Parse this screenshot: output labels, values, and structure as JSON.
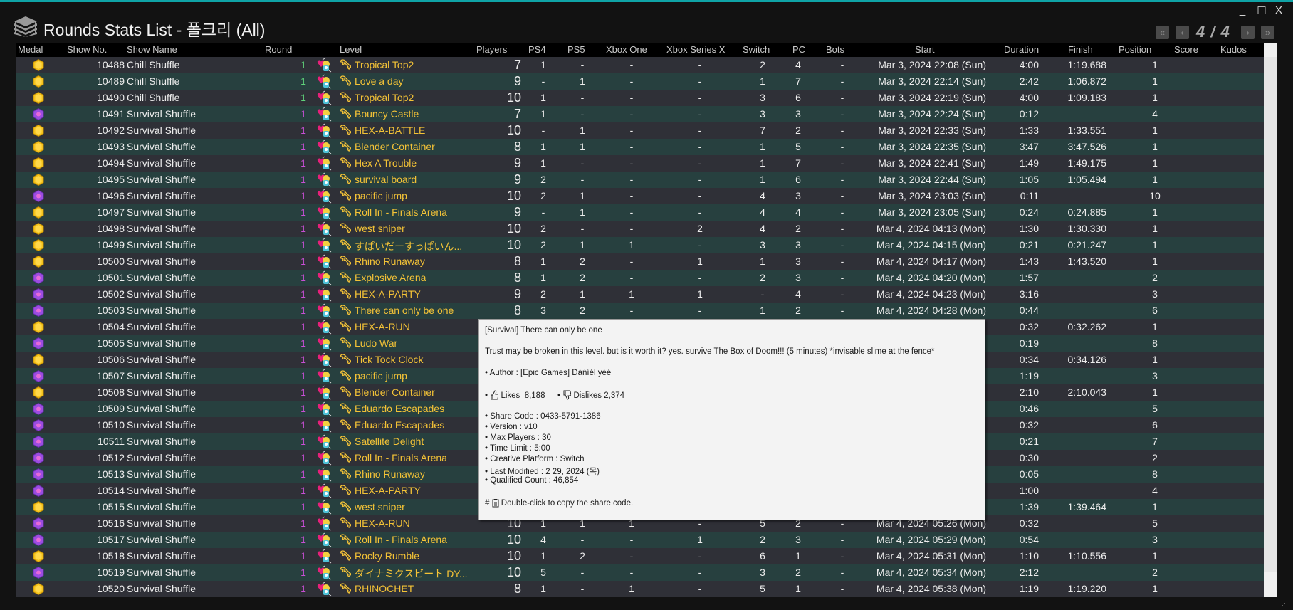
{
  "window": {
    "title": "Rounds Stats List - 폴크리 (All)",
    "controls": {
      "minimize": "_",
      "maximize": "☐",
      "close": "X"
    },
    "accent_color": "#0fa3a6"
  },
  "pager": {
    "first": "«",
    "prev": "‹",
    "page_info": "4 / 4",
    "next": "›",
    "last": "»"
  },
  "columns": {
    "medal": "Medal",
    "show_no": "Show No.",
    "show_name": "Show Name",
    "round": "Round",
    "level": "Level",
    "players": "Players",
    "ps4": "PS4",
    "ps5": "PS5",
    "xbox_one": "Xbox One",
    "xbox_series_x": "Xbox Series X",
    "switch": "Switch",
    "pc": "PC",
    "bots": "Bots",
    "start": "Start",
    "duration": "Duration",
    "finish": "Finish",
    "position": "Position",
    "score": "Score",
    "kudos": "Kudos"
  },
  "colors": {
    "medal_gold": "#f4c21c",
    "medal_purple": "#9b4de0",
    "round_chill": "#5fd27a",
    "round_survival": "#c94fd6",
    "level_text": "#f3c237",
    "row_dark": "#2f3037",
    "row_teal": "#27403f"
  },
  "rows": [
    {
      "medal": "gold",
      "show_no": "10488",
      "show_name": "Chill Shuffle",
      "round": "1",
      "level": "Tropical Top2",
      "players": "7",
      "ps4": "1",
      "ps5": "-",
      "xbox_one": "-",
      "xbox_series_x": "-",
      "switch": "2",
      "pc": "4",
      "bots": "-",
      "start": "Mar 3, 2024 22:08 (Sun)",
      "duration": "4:00",
      "finish": "1:19.688",
      "position": "1"
    },
    {
      "medal": "gold",
      "show_no": "10489",
      "show_name": "Chill Shuffle",
      "round": "1",
      "level": "Love a day",
      "players": "9",
      "ps4": "-",
      "ps5": "1",
      "xbox_one": "-",
      "xbox_series_x": "-",
      "switch": "1",
      "pc": "7",
      "bots": "-",
      "start": "Mar 3, 2024 22:14 (Sun)",
      "duration": "2:42",
      "finish": "1:06.872",
      "position": "1"
    },
    {
      "medal": "gold",
      "show_no": "10490",
      "show_name": "Chill Shuffle",
      "round": "1",
      "level": "Tropical Top2",
      "players": "10",
      "ps4": "1",
      "ps5": "-",
      "xbox_one": "-",
      "xbox_series_x": "-",
      "switch": "3",
      "pc": "6",
      "bots": "-",
      "start": "Mar 3, 2024 22:19 (Sun)",
      "duration": "4:00",
      "finish": "1:09.183",
      "position": "1"
    },
    {
      "medal": "purple",
      "show_no": "10491",
      "show_name": "Survival Shuffle",
      "round": "1",
      "level": "Bouncy Castle",
      "players": "7",
      "ps4": "1",
      "ps5": "-",
      "xbox_one": "-",
      "xbox_series_x": "-",
      "switch": "3",
      "pc": "3",
      "bots": "-",
      "start": "Mar 3, 2024 22:24 (Sun)",
      "duration": "0:12",
      "finish": "",
      "position": "4"
    },
    {
      "medal": "gold",
      "show_no": "10492",
      "show_name": "Survival Shuffle",
      "round": "1",
      "level": "HEX-A-BATTLE",
      "players": "10",
      "ps4": "-",
      "ps5": "1",
      "xbox_one": "-",
      "xbox_series_x": "-",
      "switch": "7",
      "pc": "2",
      "bots": "-",
      "start": "Mar 3, 2024 22:33 (Sun)",
      "duration": "1:33",
      "finish": "1:33.551",
      "position": "1"
    },
    {
      "medal": "gold",
      "show_no": "10493",
      "show_name": "Survival Shuffle",
      "round": "1",
      "level": "Blender Container",
      "players": "8",
      "ps4": "1",
      "ps5": "1",
      "xbox_one": "-",
      "xbox_series_x": "-",
      "switch": "1",
      "pc": "5",
      "bots": "-",
      "start": "Mar 3, 2024 22:35 (Sun)",
      "duration": "3:47",
      "finish": "3:47.526",
      "position": "1"
    },
    {
      "medal": "gold",
      "show_no": "10494",
      "show_name": "Survival Shuffle",
      "round": "1",
      "level": "Hex A Trouble",
      "players": "9",
      "ps4": "1",
      "ps5": "-",
      "xbox_one": "-",
      "xbox_series_x": "-",
      "switch": "1",
      "pc": "7",
      "bots": "-",
      "start": "Mar 3, 2024 22:41 (Sun)",
      "duration": "1:49",
      "finish": "1:49.175",
      "position": "1"
    },
    {
      "medal": "gold",
      "show_no": "10495",
      "show_name": "Survival Shuffle",
      "round": "1",
      "level": "survival board",
      "players": "9",
      "ps4": "2",
      "ps5": "-",
      "xbox_one": "-",
      "xbox_series_x": "-",
      "switch": "1",
      "pc": "6",
      "bots": "-",
      "start": "Mar 3, 2024 22:44 (Sun)",
      "duration": "1:05",
      "finish": "1:05.494",
      "position": "1"
    },
    {
      "medal": "purple",
      "show_no": "10496",
      "show_name": "Survival Shuffle",
      "round": "1",
      "level": "pacific jump",
      "players": "10",
      "ps4": "2",
      "ps5": "1",
      "xbox_one": "-",
      "xbox_series_x": "-",
      "switch": "4",
      "pc": "3",
      "bots": "-",
      "start": "Mar 3, 2024 23:03 (Sun)",
      "duration": "0:11",
      "finish": "",
      "position": "10"
    },
    {
      "medal": "gold",
      "show_no": "10497",
      "show_name": "Survival Shuffle",
      "round": "1",
      "level": "Roll In - Finals Arena",
      "players": "9",
      "ps4": "-",
      "ps5": "1",
      "xbox_one": "-",
      "xbox_series_x": "-",
      "switch": "4",
      "pc": "4",
      "bots": "-",
      "start": "Mar 3, 2024 23:05 (Sun)",
      "duration": "0:24",
      "finish": "0:24.885",
      "position": "1"
    },
    {
      "medal": "gold",
      "show_no": "10498",
      "show_name": "Survival Shuffle",
      "round": "1",
      "level": "west sniper",
      "players": "10",
      "ps4": "2",
      "ps5": "-",
      "xbox_one": "-",
      "xbox_series_x": "2",
      "switch": "4",
      "pc": "2",
      "bots": "-",
      "start": "Mar 4, 2024 04:13 (Mon)",
      "duration": "1:30",
      "finish": "1:30.330",
      "position": "1"
    },
    {
      "medal": "gold",
      "show_no": "10499",
      "show_name": "Survival Shuffle",
      "round": "1",
      "level": "すぱいだーすっぱいん...",
      "players": "10",
      "ps4": "2",
      "ps5": "1",
      "xbox_one": "1",
      "xbox_series_x": "-",
      "switch": "3",
      "pc": "3",
      "bots": "-",
      "start": "Mar 4, 2024 04:15 (Mon)",
      "duration": "0:21",
      "finish": "0:21.247",
      "position": "1"
    },
    {
      "medal": "gold",
      "show_no": "10500",
      "show_name": "Survival Shuffle",
      "round": "1",
      "level": "Rhino Runaway",
      "players": "8",
      "ps4": "1",
      "ps5": "2",
      "xbox_one": "-",
      "xbox_series_x": "1",
      "switch": "1",
      "pc": "3",
      "bots": "-",
      "start": "Mar 4, 2024 04:17 (Mon)",
      "duration": "1:43",
      "finish": "1:43.520",
      "position": "1"
    },
    {
      "medal": "purple",
      "show_no": "10501",
      "show_name": "Survival Shuffle",
      "round": "1",
      "level": "Explosive Arena",
      "players": "8",
      "ps4": "1",
      "ps5": "2",
      "xbox_one": "-",
      "xbox_series_x": "-",
      "switch": "2",
      "pc": "3",
      "bots": "-",
      "start": "Mar 4, 2024 04:20 (Mon)",
      "duration": "1:57",
      "finish": "",
      "position": "2"
    },
    {
      "medal": "purple",
      "show_no": "10502",
      "show_name": "Survival Shuffle",
      "round": "1",
      "level": "HEX-A-PARTY",
      "players": "9",
      "ps4": "2",
      "ps5": "1",
      "xbox_one": "1",
      "xbox_series_x": "1",
      "switch": "-",
      "pc": "4",
      "bots": "-",
      "start": "Mar 4, 2024 04:23 (Mon)",
      "duration": "3:16",
      "finish": "",
      "position": "3"
    },
    {
      "medal": "purple",
      "show_no": "10503",
      "show_name": "Survival Shuffle",
      "round": "1",
      "level": "There can only be one",
      "players": "8",
      "ps4": "3",
      "ps5": "2",
      "xbox_one": "-",
      "xbox_series_x": "-",
      "switch": "1",
      "pc": "2",
      "bots": "-",
      "start": "Mar 4, 2024 04:28 (Mon)",
      "duration": "0:44",
      "finish": "",
      "position": "6"
    },
    {
      "medal": "gold",
      "show_no": "10504",
      "show_name": "Survival Shuffle",
      "round": "1",
      "level": "HEX-A-RUN",
      "duration": "0:32",
      "finish": "0:32.262",
      "position": "1"
    },
    {
      "medal": "purple",
      "show_no": "10505",
      "show_name": "Survival Shuffle",
      "round": "1",
      "level": "Ludo War",
      "duration": "0:19",
      "finish": "",
      "position": "8"
    },
    {
      "medal": "gold",
      "show_no": "10506",
      "show_name": "Survival Shuffle",
      "round": "1",
      "level": "Tick Tock Clock",
      "duration": "0:34",
      "finish": "0:34.126",
      "position": "1"
    },
    {
      "medal": "purple",
      "show_no": "10507",
      "show_name": "Survival Shuffle",
      "round": "1",
      "level": "pacific jump",
      "duration": "1:19",
      "finish": "",
      "position": "3"
    },
    {
      "medal": "gold",
      "show_no": "10508",
      "show_name": "Survival Shuffle",
      "round": "1",
      "level": "Blender Container",
      "duration": "2:10",
      "finish": "2:10.043",
      "position": "1"
    },
    {
      "medal": "purple",
      "show_no": "10509",
      "show_name": "Survival Shuffle",
      "round": "1",
      "level": "Eduardo Escapades",
      "duration": "0:46",
      "finish": "",
      "position": "5"
    },
    {
      "medal": "purple",
      "show_no": "10510",
      "show_name": "Survival Shuffle",
      "round": "1",
      "level": "Eduardo Escapades",
      "duration": "0:32",
      "finish": "",
      "position": "6"
    },
    {
      "medal": "purple",
      "show_no": "10511",
      "show_name": "Survival Shuffle",
      "round": "1",
      "level": "Satellite Delight",
      "duration": "0:21",
      "finish": "",
      "position": "7"
    },
    {
      "medal": "purple",
      "show_no": "10512",
      "show_name": "Survival Shuffle",
      "round": "1",
      "level": "Roll In - Finals Arena",
      "duration": "0:30",
      "finish": "",
      "position": "2"
    },
    {
      "medal": "purple",
      "show_no": "10513",
      "show_name": "Survival Shuffle",
      "round": "1",
      "level": "Rhino Runaway",
      "duration": "0:05",
      "finish": "",
      "position": "8"
    },
    {
      "medal": "purple",
      "show_no": "10514",
      "show_name": "Survival Shuffle",
      "round": "1",
      "level": "HEX-A-PARTY",
      "duration": "1:00",
      "finish": "",
      "position": "4"
    },
    {
      "medal": "gold",
      "show_no": "10515",
      "show_name": "Survival Shuffle",
      "round": "1",
      "level": "west sniper",
      "duration": "1:39",
      "finish": "1:39.464",
      "position": "1"
    },
    {
      "medal": "purple",
      "show_no": "10516",
      "show_name": "Survival Shuffle",
      "round": "1",
      "level": "HEX-A-RUN",
      "players": "10",
      "ps4": "1",
      "ps5": "1",
      "xbox_one": "1",
      "xbox_series_x": "-",
      "switch": "5",
      "pc": "2",
      "bots": "-",
      "start": "Mar 4, 2024 05:26 (Mon)",
      "duration": "0:32",
      "finish": "",
      "position": "5"
    },
    {
      "medal": "purple",
      "show_no": "10517",
      "show_name": "Survival Shuffle",
      "round": "1",
      "level": "Roll In - Finals Arena",
      "players": "10",
      "ps4": "4",
      "ps5": "-",
      "xbox_one": "-",
      "xbox_series_x": "1",
      "switch": "2",
      "pc": "3",
      "bots": "-",
      "start": "Mar 4, 2024 05:29 (Mon)",
      "duration": "0:54",
      "finish": "",
      "position": "3"
    },
    {
      "medal": "gold",
      "show_no": "10518",
      "show_name": "Survival Shuffle",
      "round": "1",
      "level": "Rocky Rumble",
      "players": "10",
      "ps4": "1",
      "ps5": "2",
      "xbox_one": "-",
      "xbox_series_x": "-",
      "switch": "6",
      "pc": "1",
      "bots": "-",
      "start": "Mar 4, 2024 05:31 (Mon)",
      "duration": "1:10",
      "finish": "1:10.556",
      "position": "1"
    },
    {
      "medal": "purple",
      "show_no": "10519",
      "show_name": "Survival Shuffle",
      "round": "1",
      "level": "ダイナミクスビート DY...",
      "players": "10",
      "ps4": "5",
      "ps5": "-",
      "xbox_one": "-",
      "xbox_series_x": "-",
      "switch": "3",
      "pc": "2",
      "bots": "-",
      "start": "Mar 4, 2024 05:34 (Mon)",
      "duration": "2:12",
      "finish": "",
      "position": "2"
    },
    {
      "medal": "gold",
      "show_no": "10520",
      "show_name": "Survival Shuffle",
      "round": "1",
      "level": "RHINOCHET",
      "players": "8",
      "ps4": "1",
      "ps5": "-",
      "xbox_one": "1",
      "xbox_series_x": "-",
      "switch": "5",
      "pc": "1",
      "bots": "-",
      "start": "Mar 4, 2024 05:38 (Mon)",
      "duration": "1:19",
      "finish": "1:19.220",
      "position": "1"
    }
  ],
  "tooltip": {
    "title": "[Survival] There can only be one",
    "description": "Trust may be broken in this level. but is it worth it? yes. survive The Box of Doom!!! (5 minutes) *invisable slime at the fence*",
    "author": "• Author : [Epic Games] Dáńíél yéé",
    "likes_label": "Likes",
    "likes": "8,188",
    "dislikes_label": "Dislikes",
    "dislikes": "2,374",
    "share_code": "• Share Code : 0433-5791-1386",
    "version": "• Version : v10",
    "max_players": "• Max Players : 30",
    "time_limit": "• Time Limit : 5:00",
    "creative_platform": "• Creative Platform : Switch",
    "last_modified": "• Last Modified : 2 29, 2024 (목)",
    "qualified_count": "• Qualified Count : 46,854",
    "copy_hint": "Double-click to copy the share code."
  }
}
